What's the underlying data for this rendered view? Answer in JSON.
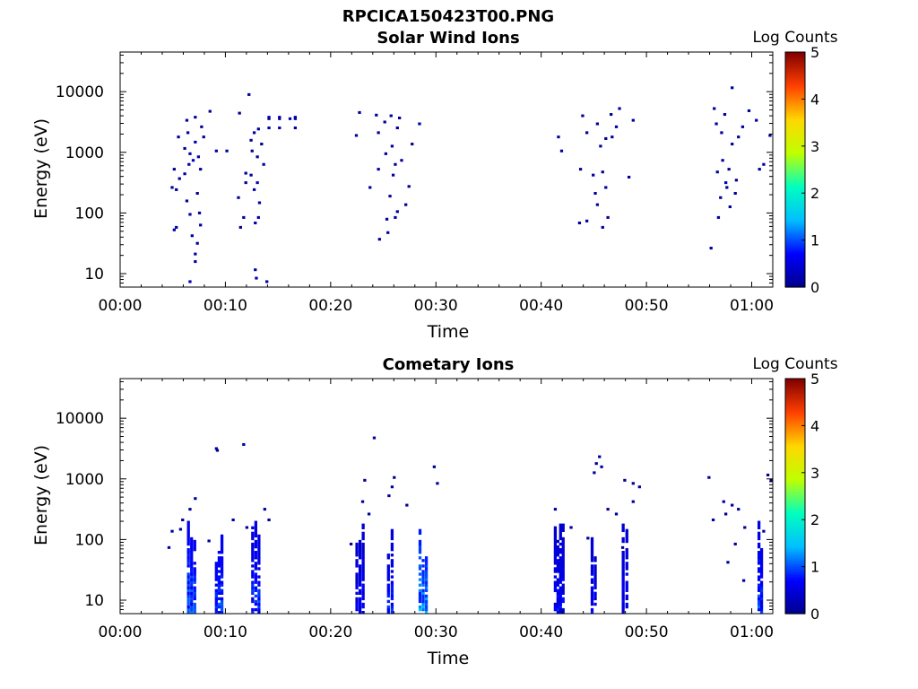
{
  "figure": {
    "title": "RPCICA150423T00.PNG"
  },
  "colors": {
    "colormap_low": "#00008b",
    "colormap_stops": [
      "#00008b",
      "#0000ff",
      "#00bfff",
      "#00ffbf",
      "#bfff00",
      "#ffd700",
      "#ff4000",
      "#800000"
    ],
    "axis": "#000000",
    "background": "#ffffff"
  },
  "chart_data": [
    {
      "type": "heatmap",
      "title": "Solar Wind Ions",
      "xlabel": "Time",
      "ylabel": "Energy (eV)",
      "x_ticks": [
        "00:00",
        "00:10",
        "00:20",
        "00:30",
        "00:40",
        "00:50",
        "01:00"
      ],
      "y_ticks": [
        "10",
        "100",
        "1000",
        "10000"
      ],
      "y_scale": "log",
      "x_range_minutes": [
        0,
        62
      ],
      "y_range": [
        6,
        45000
      ],
      "colorbar": {
        "label": "Log Counts",
        "ticks": [
          "0",
          "1",
          "2",
          "3",
          "4",
          "5"
        ],
        "range": [
          0,
          5
        ]
      },
      "points": [
        [
          6.5,
          7,
          0.2
        ],
        [
          7.0,
          15,
          0.2
        ],
        [
          7.0,
          20,
          0.2
        ],
        [
          7.2,
          30,
          0.1
        ],
        [
          6.7,
          40,
          0.1
        ],
        [
          5.0,
          50,
          0.1
        ],
        [
          5.2,
          55,
          0.1
        ],
        [
          7.5,
          60,
          0.1
        ],
        [
          6.5,
          90,
          0.1
        ],
        [
          7.4,
          95,
          0.1
        ],
        [
          6.2,
          150,
          0.1
        ],
        [
          7.2,
          200,
          0.1
        ],
        [
          5.2,
          230,
          0.1
        ],
        [
          4.8,
          250,
          0.1
        ],
        [
          5.5,
          350,
          0.1
        ],
        [
          6.0,
          420,
          0.1
        ],
        [
          7.5,
          500,
          0.1
        ],
        [
          5.0,
          500,
          0.1
        ],
        [
          6.4,
          600,
          0.2
        ],
        [
          6.8,
          700,
          0.3
        ],
        [
          7.3,
          800,
          0.2
        ],
        [
          6.5,
          900,
          0.2
        ],
        [
          6.0,
          1100,
          0.1
        ],
        [
          7.0,
          1400,
          0.2
        ],
        [
          7.8,
          1700,
          0.1
        ],
        [
          5.4,
          1700,
          0.1
        ],
        [
          6.3,
          2000,
          0.1
        ],
        [
          7.6,
          2500,
          0.1
        ],
        [
          6.2,
          3200,
          0.1
        ],
        [
          7.0,
          3600,
          0.1
        ],
        [
          8.4,
          4500,
          0.1
        ],
        [
          9.0,
          1000,
          0.1
        ],
        [
          10.0,
          1000,
          0.1
        ],
        [
          12.8,
          8,
          0.2
        ],
        [
          12.7,
          11,
          0.2
        ],
        [
          13.8,
          7,
          0.2
        ],
        [
          12.7,
          65,
          0.1
        ],
        [
          11.3,
          55,
          0.1
        ],
        [
          13.0,
          80,
          0.2
        ],
        [
          11.6,
          80,
          0.1
        ],
        [
          11.1,
          170,
          0.1
        ],
        [
          13.1,
          140,
          0.2
        ],
        [
          12.6,
          230,
          0.2
        ],
        [
          12.9,
          300,
          0.3
        ],
        [
          11.8,
          300,
          0.1
        ],
        [
          12.3,
          400,
          0.1
        ],
        [
          11.8,
          430,
          0.1
        ],
        [
          13.5,
          600,
          0.1
        ],
        [
          12.9,
          800,
          0.1
        ],
        [
          12.4,
          1000,
          0.1
        ],
        [
          13.3,
          1300,
          0.1
        ],
        [
          12.3,
          1500,
          0.1
        ],
        [
          12.6,
          2000,
          0.1
        ],
        [
          13.0,
          2300,
          0.1
        ],
        [
          11.2,
          4200,
          0.1
        ],
        [
          12.1,
          8500,
          0.1
        ],
        [
          14.0,
          3400,
          0.2
        ],
        [
          15.0,
          3400,
          0.2
        ],
        [
          16.0,
          3400,
          0.2
        ],
        [
          16.5,
          3400,
          0.2
        ],
        [
          14.0,
          3600,
          0.2
        ],
        [
          15.0,
          3600,
          0.2
        ],
        [
          16.5,
          3600,
          0.2
        ],
        [
          14.0,
          2400,
          0.2
        ],
        [
          15.0,
          2400,
          0.2
        ],
        [
          16.5,
          2400,
          0.2
        ],
        [
          24.5,
          35,
          0.1
        ],
        [
          25.3,
          45,
          0.1
        ],
        [
          25.2,
          75,
          0.1
        ],
        [
          26.0,
          80,
          0.1
        ],
        [
          26.2,
          100,
          0.1
        ],
        [
          27.0,
          130,
          0.1
        ],
        [
          25.5,
          180,
          0.1
        ],
        [
          23.6,
          250,
          0.1
        ],
        [
          27.3,
          260,
          0.1
        ],
        [
          25.8,
          400,
          0.1
        ],
        [
          24.4,
          500,
          0.2
        ],
        [
          26.0,
          600,
          0.1
        ],
        [
          26.6,
          700,
          0.1
        ],
        [
          25.1,
          900,
          0.1
        ],
        [
          27.6,
          1300,
          0.1
        ],
        [
          25.7,
          1200,
          0.1
        ],
        [
          22.3,
          1800,
          0.1
        ],
        [
          24.4,
          2000,
          0.1
        ],
        [
          26.2,
          2400,
          0.1
        ],
        [
          25.0,
          3000,
          0.1
        ],
        [
          25.6,
          3800,
          0.1
        ],
        [
          26.4,
          3500,
          0.1
        ],
        [
          22.6,
          4300,
          0.1
        ],
        [
          24.2,
          3900,
          0.1
        ],
        [
          28.3,
          2800,
          0.1
        ],
        [
          43.5,
          65,
          0.1
        ],
        [
          44.2,
          70,
          0.1
        ],
        [
          45.7,
          55,
          0.1
        ],
        [
          46.2,
          80,
          0.1
        ],
        [
          45.2,
          130,
          0.1
        ],
        [
          45.0,
          200,
          0.1
        ],
        [
          46.0,
          250,
          0.1
        ],
        [
          44.8,
          400,
          0.1
        ],
        [
          45.7,
          450,
          0.1
        ],
        [
          43.6,
          500,
          0.1
        ],
        [
          48.2,
          370,
          0.1
        ],
        [
          41.8,
          1000,
          0.1
        ],
        [
          45.5,
          1200,
          0.1
        ],
        [
          46.0,
          1600,
          0.1
        ],
        [
          46.6,
          1700,
          0.1
        ],
        [
          44.2,
          2000,
          0.1
        ],
        [
          47.0,
          2500,
          0.1
        ],
        [
          45.2,
          2800,
          0.1
        ],
        [
          43.8,
          3800,
          0.1
        ],
        [
          46.5,
          4000,
          0.1
        ],
        [
          48.6,
          3200,
          0.1
        ],
        [
          47.3,
          5000,
          0.1
        ],
        [
          41.5,
          1700,
          0.1
        ],
        [
          56.0,
          25,
          0.1
        ],
        [
          56.7,
          80,
          0.1
        ],
        [
          57.8,
          120,
          0.1
        ],
        [
          56.9,
          170,
          0.1
        ],
        [
          58.3,
          200,
          0.1
        ],
        [
          57.5,
          250,
          0.1
        ],
        [
          57.4,
          300,
          0.2
        ],
        [
          58.4,
          330,
          0.1
        ],
        [
          56.6,
          450,
          0.1
        ],
        [
          57.7,
          500,
          0.1
        ],
        [
          57.1,
          700,
          0.1
        ],
        [
          60.6,
          500,
          0.1
        ],
        [
          61.0,
          600,
          0.1
        ],
        [
          58.0,
          1300,
          0.1
        ],
        [
          58.6,
          1700,
          0.1
        ],
        [
          57.0,
          2000,
          0.1
        ],
        [
          59.0,
          2500,
          0.1
        ],
        [
          60.3,
          3200,
          0.1
        ],
        [
          57.3,
          4000,
          0.1
        ],
        [
          59.6,
          4600,
          0.1
        ],
        [
          56.3,
          5000,
          0.1
        ],
        [
          58.0,
          11000,
          0.1
        ],
        [
          61.6,
          1800,
          0.1
        ],
        [
          56.5,
          2800,
          0.1
        ]
      ]
    },
    {
      "type": "heatmap",
      "title": "Cometary Ions",
      "xlabel": "Time",
      "ylabel": "Energy (eV)",
      "x_ticks": [
        "00:00",
        "00:10",
        "00:20",
        "00:30",
        "00:40",
        "00:50",
        "01:00"
      ],
      "y_ticks": [
        "10",
        "100",
        "1000",
        "10000"
      ],
      "y_scale": "log",
      "x_range_minutes": [
        0,
        62
      ],
      "y_range": [
        6,
        45000
      ],
      "colorbar": {
        "label": "Log Counts",
        "ticks": [
          "0",
          "1",
          "2",
          "3",
          "4",
          "5"
        ],
        "range": [
          0,
          5
        ]
      },
      "bursts": [
        {
          "t": 6.8,
          "width": 0.9,
          "emin": 6,
          "emax": 350,
          "level": 0.6,
          "peak": 1.3
        },
        {
          "t": 9.4,
          "width": 0.8,
          "emin": 6,
          "emax": 150,
          "level": 0.6,
          "peak": 1.2
        },
        {
          "t": 12.9,
          "width": 0.9,
          "emin": 6,
          "emax": 380,
          "level": 0.5,
          "peak": 1.1
        },
        {
          "t": 22.8,
          "width": 0.9,
          "emin": 6,
          "emax": 200,
          "level": 0.4,
          "peak": 0.8
        },
        {
          "t": 25.7,
          "width": 0.7,
          "emin": 6,
          "emax": 250,
          "level": 0.5,
          "peak": 1.0
        },
        {
          "t": 28.8,
          "width": 0.9,
          "emin": 6,
          "emax": 180,
          "level": 0.8,
          "peak": 1.6
        },
        {
          "t": 41.7,
          "width": 1.0,
          "emin": 6,
          "emax": 220,
          "level": 0.4,
          "peak": 0.9
        },
        {
          "t": 45.0,
          "width": 0.6,
          "emin": 6,
          "emax": 220,
          "level": 0.4,
          "peak": 0.9
        },
        {
          "t": 48.0,
          "width": 0.7,
          "emin": 6,
          "emax": 200,
          "level": 0.4,
          "peak": 0.8
        },
        {
          "t": 60.8,
          "width": 0.5,
          "emin": 6,
          "emax": 300,
          "level": 0.5,
          "peak": 1.2
        }
      ],
      "points": [
        [
          4.5,
          70,
          0.1
        ],
        [
          4.8,
          130,
          0.1
        ],
        [
          5.6,
          140,
          0.1
        ],
        [
          5.8,
          200,
          0.1
        ],
        [
          6.5,
          300,
          0.1
        ],
        [
          7.0,
          450,
          0.1
        ],
        [
          9.0,
          3000,
          0.1
        ],
        [
          9.1,
          2800,
          0.1
        ],
        [
          11.6,
          3500,
          0.1
        ],
        [
          10.6,
          200,
          0.1
        ],
        [
          11.9,
          150,
          0.1
        ],
        [
          8.3,
          90,
          0.1
        ],
        [
          14.0,
          200,
          0.1
        ],
        [
          13.6,
          300,
          0.1
        ],
        [
          22.9,
          400,
          0.1
        ],
        [
          23.5,
          250,
          0.1
        ],
        [
          25.4,
          500,
          0.1
        ],
        [
          25.7,
          700,
          0.1
        ],
        [
          25.9,
          1000,
          0.1
        ],
        [
          24.0,
          4500,
          0.1
        ],
        [
          27.1,
          350,
          0.1
        ],
        [
          23.1,
          900,
          0.1
        ],
        [
          29.7,
          1500,
          0.1
        ],
        [
          30.0,
          800,
          0.1
        ],
        [
          21.8,
          80,
          0.1
        ],
        [
          41.2,
          300,
          0.1
        ],
        [
          42.7,
          150,
          0.1
        ],
        [
          44.9,
          1200,
          0.1
        ],
        [
          45.1,
          1700,
          0.1
        ],
        [
          45.4,
          2200,
          0.1
        ],
        [
          45.6,
          1500,
          0.1
        ],
        [
          46.2,
          300,
          0.1
        ],
        [
          47.0,
          250,
          0.1
        ],
        [
          47.8,
          900,
          0.1
        ],
        [
          48.6,
          800,
          0.1
        ],
        [
          49.2,
          700,
          0.1
        ],
        [
          48.6,
          400,
          0.1
        ],
        [
          47.6,
          70,
          0.1
        ],
        [
          44.3,
          100,
          0.1
        ],
        [
          55.8,
          1000,
          0.1
        ],
        [
          57.4,
          250,
          0.1
        ],
        [
          58.0,
          350,
          0.1
        ],
        [
          58.6,
          300,
          0.1
        ],
        [
          57.2,
          400,
          0.1
        ],
        [
          59.2,
          150,
          0.1
        ],
        [
          58.3,
          80,
          0.1
        ],
        [
          57.6,
          40,
          0.1
        ],
        [
          56.2,
          200,
          0.1
        ],
        [
          61.4,
          1100,
          0.1
        ],
        [
          61.7,
          900,
          0.1
        ],
        [
          61.0,
          130,
          0.1
        ],
        [
          62.0,
          1150,
          0.1
        ],
        [
          59.1,
          20,
          0.1
        ]
      ]
    }
  ]
}
